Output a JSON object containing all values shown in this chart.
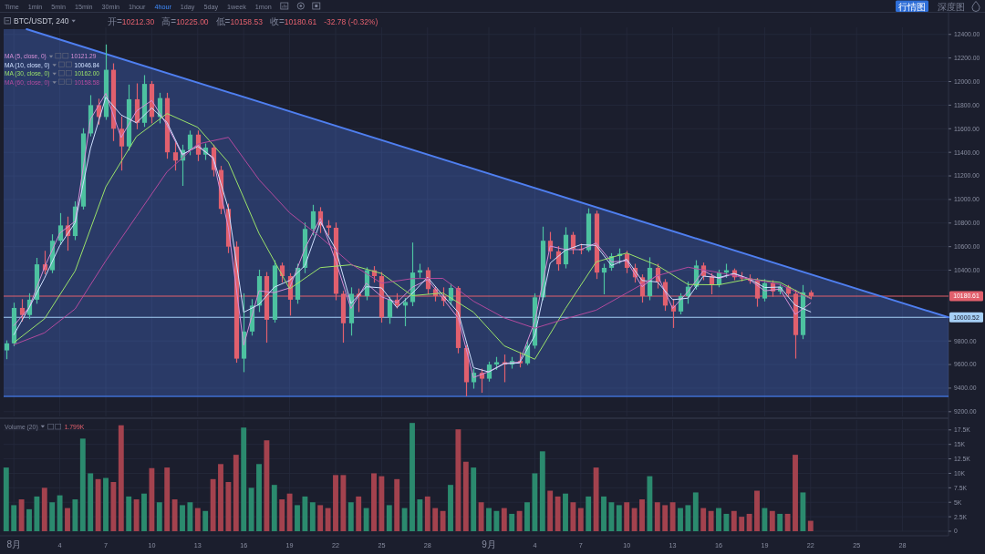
{
  "chart_data": [
    {
      "type": "candlestick",
      "title": "BTC/USDT, 240",
      "annotations": [
        "Time",
        "1min",
        "5min",
        "15min",
        "30min",
        "1hour",
        "4hour",
        "1day",
        "5day",
        "1week",
        "1mon",
        "行情图",
        "深度图",
        "开=10212.30",
        "高=10225.00",
        "低=10158.53",
        "收=10180.61",
        "-32.78 (-0.32%)",
        "10121.29",
        "10046.84",
        "10162.00",
        "10158.58"
      ],
      "x": [
        "--07-31T12:00",
        "--08-01T00:00",
        "--08-01T12:00",
        "--08-02T00:00",
        "--08-02T12:00",
        "--08-03T00:00",
        "--08-03T12:00",
        "--08-04T00:00",
        "--08-04T12:00",
        "--08-05T00:00",
        "--08-05T12:00",
        "--08-06T00:00",
        "--08-06T12:00",
        "--08-07T00:00",
        "--08-07T12:00",
        "--08-08T00:00",
        "--08-08T12:00",
        "--08-09T00:00",
        "--08-09T12:00",
        "--08-10T00:00",
        "--08-10T12:00",
        "--08-11T00:00",
        "--08-11T12:00",
        "--08-12T00:00",
        "--08-12T12:00",
        "--08-13T00:00",
        "--08-13T12:00",
        "--08-14T00:00",
        "--08-14T12:00",
        "--08-15T00:00",
        "--08-15T12:00",
        "--08-16T00:00",
        "--08-16T12:00",
        "--08-17T00:00",
        "--08-17T12:00",
        "--08-18T00:00",
        "--08-18T12:00",
        "--08-19T00:00",
        "--08-19T12:00",
        "--08-20T00:00",
        "--08-20T12:00",
        "--08-21T00:00",
        "--08-21T12:00",
        "--08-22T00:00",
        "--08-22T12:00",
        "--08-23T00:00",
        "--08-23T12:00",
        "--08-24T00:00",
        "--08-24T12:00",
        "--08-25T00:00",
        "--08-25T12:00",
        "--08-26T00:00",
        "--08-26T12:00",
        "--08-27T00:00",
        "--08-27T12:00",
        "--08-28T00:00",
        "--08-28T12:00",
        "--08-29T00:00",
        "--08-29T12:00",
        "--08-30T00:00",
        "--08-30T12:00",
        "--08-31T00:00",
        "--08-31T12:00",
        "--09-01T00:00",
        "--09-01T12:00",
        "--09-02T00:00",
        "--09-02T12:00",
        "--09-03T00:00",
        "--09-03T12:00",
        "--09-04T00:00",
        "--09-04T12:00",
        "--09-05T00:00",
        "--09-05T12:00",
        "--09-06T00:00",
        "--09-06T12:00",
        "--09-07T00:00",
        "--09-07T12:00",
        "--09-08T00:00",
        "--09-08T12:00",
        "--09-09T00:00",
        "--09-09T12:00",
        "--09-10T00:00",
        "--09-10T12:00",
        "--09-11T00:00",
        "--09-11T12:00",
        "--09-12T00:00",
        "--09-12T12:00",
        "--09-13T00:00",
        "--09-13T12:00",
        "--09-14T00:00",
        "--09-14T12:00",
        "--09-15T00:00",
        "--09-15T12:00",
        "--09-16T00:00",
        "--09-16T12:00",
        "--09-17T00:00",
        "--09-17T12:00",
        "--09-18T00:00",
        "--09-18T12:00",
        "--09-19T00:00",
        "--09-19T12:00",
        "--09-20T00:00",
        "--09-20T12:00",
        "--09-21T00:00",
        "--09-21T12:00",
        "--09-22T00:00"
      ],
      "ohlc": [
        [
          9720,
          9800,
          9650,
          9780
        ],
        [
          9780,
          10120,
          9760,
          10080
        ],
        [
          10080,
          10150,
          9970,
          10020
        ],
        [
          10020,
          10200,
          9990,
          10150
        ],
        [
          10150,
          10500,
          10120,
          10450
        ],
        [
          10450,
          10560,
          10370,
          10400
        ],
        [
          10400,
          10700,
          10380,
          10650
        ],
        [
          10650,
          10880,
          10620,
          10780
        ],
        [
          10780,
          10850,
          10570,
          10690
        ],
        [
          10690,
          10980,
          10660,
          10940
        ],
        [
          10940,
          11600,
          10920,
          11560
        ],
        [
          11560,
          11880,
          11540,
          11800
        ],
        [
          11800,
          11850,
          11640,
          11700
        ],
        [
          11700,
          12310,
          11680,
          12100
        ],
        [
          12100,
          12150,
          11500,
          11600
        ],
        [
          11600,
          11700,
          11250,
          11450
        ],
        [
          11450,
          11970,
          11420,
          11850
        ],
        [
          11850,
          11980,
          11600,
          11650
        ],
        [
          11650,
          12050,
          11620,
          11980
        ],
        [
          11980,
          12000,
          11650,
          11700
        ],
        [
          11700,
          11900,
          11650,
          11860
        ],
        [
          11860,
          11900,
          11350,
          11400
        ],
        [
          11400,
          11480,
          11250,
          11330
        ],
        [
          11330,
          11460,
          11120,
          11420
        ],
        [
          11420,
          11580,
          11380,
          11550
        ],
        [
          11550,
          11580,
          11330,
          11380
        ],
        [
          11380,
          11470,
          11340,
          11440
        ],
        [
          11440,
          11460,
          11200,
          11250
        ],
        [
          11250,
          11280,
          10880,
          10920
        ],
        [
          10920,
          10960,
          10550,
          10600
        ],
        [
          10600,
          10640,
          9620,
          9650
        ],
        [
          9650,
          10200,
          9540,
          9880
        ],
        [
          9880,
          10150,
          9850,
          10100
        ],
        [
          10100,
          10400,
          10050,
          10350
        ],
        [
          10350,
          10380,
          9790,
          9980
        ],
        [
          9980,
          10480,
          9960,
          10440
        ],
        [
          10440,
          10460,
          10300,
          10350
        ],
        [
          10350,
          10370,
          10020,
          10150
        ],
        [
          10150,
          10450,
          10120,
          10420
        ],
        [
          10420,
          10800,
          10380,
          10750
        ],
        [
          10750,
          10950,
          10700,
          10900
        ],
        [
          10900,
          10930,
          10720,
          10780
        ],
        [
          10780,
          10820,
          10700,
          10760
        ],
        [
          10760,
          10800,
          10150,
          10200
        ],
        [
          10200,
          10220,
          9790,
          9950
        ],
        [
          9950,
          10250,
          9850,
          10200
        ],
        [
          10200,
          10240,
          10050,
          10180
        ],
        [
          10180,
          10420,
          10150,
          10400
        ],
        [
          10400,
          10430,
          10300,
          10350
        ],
        [
          10350,
          10380,
          9960,
          10000
        ],
        [
          10000,
          10170,
          9950,
          10150
        ],
        [
          10150,
          10200,
          10080,
          10100
        ],
        [
          10100,
          10160,
          9930,
          10130
        ],
        [
          10130,
          10630,
          10100,
          10380
        ],
        [
          10380,
          10450,
          10340,
          10400
        ],
        [
          10400,
          10420,
          10200,
          10240
        ],
        [
          10240,
          10260,
          10140,
          10180
        ],
        [
          10180,
          10250,
          10100,
          10140
        ],
        [
          10140,
          10280,
          10110,
          10250
        ],
        [
          10250,
          10260,
          9700,
          9740
        ],
        [
          9740,
          9760,
          9335,
          9450
        ],
        [
          9450,
          9560,
          9400,
          9530
        ],
        [
          9530,
          9560,
          9365,
          9480
        ],
        [
          9480,
          9620,
          9460,
          9600
        ],
        [
          9600,
          9660,
          9560,
          9620
        ],
        [
          9620,
          9680,
          9455,
          9600
        ],
        [
          9600,
          9660,
          9570,
          9630
        ],
        [
          9630,
          9700,
          9580,
          9610
        ],
        [
          9610,
          9800,
          9600,
          9760
        ],
        [
          9760,
          10200,
          9740,
          10170
        ],
        [
          10170,
          10765,
          10150,
          10650
        ],
        [
          10650,
          10720,
          10500,
          10560
        ],
        [
          10560,
          10600,
          10400,
          10450
        ],
        [
          10450,
          10760,
          10420,
          10700
        ],
        [
          10700,
          10720,
          10540,
          10580
        ],
        [
          10580,
          10620,
          10540,
          10570
        ],
        [
          10570,
          10920,
          10560,
          10880
        ],
        [
          10880,
          10900,
          10330,
          10380
        ],
        [
          10380,
          10450,
          10200,
          10420
        ],
        [
          10420,
          10540,
          10400,
          10520
        ],
        [
          10520,
          10580,
          10460,
          10540
        ],
        [
          10540,
          10560,
          10380,
          10420
        ],
        [
          10420,
          10450,
          10300,
          10340
        ],
        [
          10340,
          10360,
          10130,
          10180
        ],
        [
          10180,
          10505,
          10150,
          10420
        ],
        [
          10420,
          10450,
          10250,
          10300
        ],
        [
          10300,
          10320,
          10060,
          10100
        ],
        [
          10100,
          10150,
          9915,
          10050
        ],
        [
          10050,
          10200,
          10030,
          10180
        ],
        [
          10180,
          10300,
          10120,
          10260
        ],
        [
          10260,
          10480,
          10240,
          10440
        ],
        [
          10440,
          10460,
          10320,
          10350
        ],
        [
          10350,
          10370,
          10200,
          10280
        ],
        [
          10280,
          10400,
          10260,
          10380
        ],
        [
          10380,
          10450,
          10340,
          10400
        ],
        [
          10400,
          10410,
          10320,
          10340
        ],
        [
          10340,
          10380,
          10310,
          10330
        ],
        [
          10330,
          10360,
          10290,
          10310
        ],
        [
          10310,
          10330,
          10095,
          10160
        ],
        [
          10160,
          10320,
          10140,
          10290
        ],
        [
          10290,
          10310,
          10180,
          10220
        ],
        [
          10220,
          10280,
          10200,
          10260
        ],
        [
          10260,
          10270,
          10180,
          10200
        ],
        [
          10200,
          10230,
          9655,
          9850
        ],
        [
          9850,
          10270,
          9820,
          10212.3
        ],
        [
          10212.3,
          10225.0,
          10158.53,
          10180.61
        ]
      ],
      "colors": [
        "#4dc2a0",
        "#4dc2a0",
        "#e1606e",
        "#4dc2a0",
        "#4dc2a0",
        "#e1606e",
        "#4dc2a0",
        "#4dc2a0",
        "#e1606e",
        "#4dc2a0",
        "#4dc2a0",
        "#4dc2a0",
        "#e1606e",
        "#4dc2a0",
        "#e1606e",
        "#e1606e",
        "#4dc2a0",
        "#e1606e",
        "#4dc2a0",
        "#e1606e",
        "#4dc2a0",
        "#e1606e",
        "#e1606e",
        "#4dc2a0",
        "#4dc2a0",
        "#e1606e",
        "#4dc2a0",
        "#e1606e",
        "#e1606e",
        "#e1606e",
        "#e1606e",
        "#4dc2a0",
        "#4dc2a0",
        "#4dc2a0",
        "#e1606e",
        "#4dc2a0",
        "#e1606e",
        "#e1606e",
        "#4dc2a0",
        "#4dc2a0",
        "#4dc2a0",
        "#e1606e",
        "#e1606e",
        "#e1606e",
        "#e1606e",
        "#4dc2a0",
        "#e1606e",
        "#4dc2a0",
        "#e1606e",
        "#e1606e",
        "#4dc2a0",
        "#e1606e",
        "#4dc2a0",
        "#4dc2a0",
        "#4dc2a0",
        "#e1606e",
        "#e1606e",
        "#e1606e",
        "#4dc2a0",
        "#e1606e",
        "#e1606e",
        "#4dc2a0",
        "#e1606e",
        "#4dc2a0",
        "#4dc2a0",
        "#e1606e",
        "#4dc2a0",
        "#e1606e",
        "#4dc2a0",
        "#4dc2a0",
        "#4dc2a0",
        "#e1606e",
        "#e1606e",
        "#4dc2a0",
        "#e1606e",
        "#e1606e",
        "#4dc2a0",
        "#e1606e",
        "#4dc2a0",
        "#4dc2a0",
        "#4dc2a0",
        "#e1606e",
        "#e1606e",
        "#e1606e",
        "#4dc2a0",
        "#e1606e",
        "#e1606e",
        "#e1606e",
        "#4dc2a0",
        "#4dc2a0",
        "#4dc2a0",
        "#e1606e",
        "#e1606e",
        "#4dc2a0",
        "#4dc2a0",
        "#e1606e",
        "#e1606e",
        "#e1606e",
        "#e1606e",
        "#4dc2a0",
        "#e1606e",
        "#4dc2a0",
        "#e1606e",
        "#e1606e",
        "#4dc2a0",
        "#e1606e"
      ],
      "series": [
        {
          "type": "line",
          "color": "#4f7ff0",
          "x": [
            "--07-31T08:00",
            "--08-01T20:00",
            "--10-01T00:00"
          ],
          "values": [
            null,
            12445,
            10000
          ],
          "lower": [
            9330,
            9330,
            9330
          ],
          "upper": [
            12445,
            12445,
            10000
          ]
        },
        {
          "type": "line",
          "name": "MA (5, close, 0)",
          "color": "#d58fd6",
          "x": [
            "--08-01",
            "--08-02",
            "--08-03",
            "--08-04",
            "--08-05",
            "--08-06",
            "--08-07",
            "--08-08",
            "--08-09",
            "--08-10",
            "--08-11",
            "--08-12",
            "--08-13",
            "--08-14",
            "--08-15",
            "--08-16",
            "--08-17",
            "--08-18",
            "--08-19",
            "--08-20",
            "--08-21",
            "--08-22",
            "--08-23",
            "--08-24",
            "--08-25",
            "--08-26",
            "--08-27",
            "--08-28",
            "--08-29",
            "--08-30",
            "--08-31",
            "--09-01",
            "--09-02",
            "--09-03",
            "--09-04",
            "--09-05",
            "--09-06",
            "--09-07",
            "--09-08",
            "--09-09",
            "--09-10",
            "--09-11",
            "--09-12",
            "--09-13",
            "--09-14",
            "--09-15",
            "--09-16",
            "--09-17",
            "--09-18",
            "--09-19",
            "--09-20",
            "--09-21",
            "--09-22"
          ],
          "values": [
            9930,
            10085,
            10425,
            10715,
            10815,
            11680,
            11900,
            11525,
            11750,
            11840,
            11630,
            11375,
            11465,
            11345,
            10760,
            9765,
            10225,
            10210,
            10250,
            10585,
            10840,
            10480,
            10075,
            10290,
            10175,
            10125,
            10255,
            10320,
            10160,
            9995,
            9490,
            9540,
            9610,
            9620,
            9965,
            10605,
            10575,
            10575,
            10630,
            10470,
            10480,
            10260,
            10360,
            10075,
            10220,
            10395,
            10330,
            10370,
            10320,
            10225,
            10240,
            10025,
            10121.29
          ]
        },
        {
          "type": "line",
          "name": "MA (10, close, 0)",
          "color": "#cfe0ff",
          "x": [
            "--08-01",
            "--08-02",
            "--08-03",
            "--08-04",
            "--08-05",
            "--08-06",
            "--08-07",
            "--08-08",
            "--08-09",
            "--08-10",
            "--08-11",
            "--08-12",
            "--08-13",
            "--08-14",
            "--08-15",
            "--08-16",
            "--08-17",
            "--08-18",
            "--08-19",
            "--08-20",
            "--08-21",
            "--08-22",
            "--08-23",
            "--08-24",
            "--08-25",
            "--08-26",
            "--08-27",
            "--08-28",
            "--08-29",
            "--08-30",
            "--08-31",
            "--09-01",
            "--09-02",
            "--09-03",
            "--09-04",
            "--09-05",
            "--09-06",
            "--09-07",
            "--09-08",
            "--09-09",
            "--09-10",
            "--09-11",
            "--09-12",
            "--09-13",
            "--09-14",
            "--09-15",
            "--09-16",
            "--09-17",
            "--09-18",
            "--09-19",
            "--09-20",
            "--09-21",
            "--09-22"
          ],
          "values": [
            9853,
            10083,
            10333,
            10610,
            10803,
            11433,
            11867,
            11717,
            11650,
            11777,
            11653,
            11383,
            11450,
            11357,
            10923,
            10043,
            10110,
            10257,
            10313,
            10440,
            10810,
            10580,
            10117,
            10260,
            10250,
            10083,
            10203,
            10340,
            10187,
            10043,
            9573,
            9537,
            9607,
            9613,
            9847,
            10460,
            10570,
            10617,
            10610,
            10440,
            10493,
            10313,
            10300,
            10150,
            10163,
            10350,
            10337,
            10373,
            10327,
            10253,
            10257,
            10103,
            10046.84
          ]
        },
        {
          "type": "line",
          "name": "MA (30, close, 0)",
          "color": "#9be36a",
          "x": [
            "--08-01",
            "--08-03",
            "--08-05",
            "--08-07",
            "--08-09",
            "--08-11",
            "--08-13",
            "--08-15",
            "--08-17",
            "--08-19",
            "--08-21",
            "--08-23",
            "--08-25",
            "--08-27",
            "--08-29",
            "--08-31",
            "--09-02",
            "--09-04",
            "--09-06",
            "--09-08",
            "--09-10",
            "--09-12",
            "--09-14",
            "--09-16",
            "--09-18",
            "--09-20",
            "--09-22"
          ],
          "values": [
            9786,
            9988,
            10394,
            11107,
            11534,
            11729,
            11612,
            11315,
            10712,
            10242,
            10422,
            10446,
            10372,
            10184,
            10207,
            10044,
            9759,
            9645,
            10075,
            10470,
            10546,
            10440,
            10279,
            10276,
            10327,
            10297,
            10162.0
          ]
        },
        {
          "type": "line",
          "name": "MA (60, close, 0)",
          "color": "#b34a9e",
          "x": [
            "--08-01",
            "--08-03",
            "--08-05",
            "--08-07",
            "--08-09",
            "--08-11",
            "--08-13",
            "--08-15",
            "--08-17",
            "--08-19",
            "--08-21",
            "--08-23",
            "--08-25",
            "--08-27",
            "--08-29",
            "--08-31",
            "--09-02",
            "--09-04",
            "--09-06",
            "--09-08",
            "--09-10",
            "--09-12",
            "--09-14",
            "--09-16",
            "--09-18",
            "--09-20",
            "--09-22"
          ],
          "values": [
            9768,
            9869,
            10072,
            10480,
            10858,
            11236,
            11470,
            11527,
            11168,
            10887,
            10682,
            10453,
            10290,
            10329,
            10331,
            10137,
            9996,
            9908,
            9988,
            10061,
            10207,
            10354,
            10425,
            10380,
            10328,
            10280,
            10158.58
          ]
        }
      ],
      "xlim": [
        "--07-31T08:00",
        "--10-01T00:00"
      ],
      "xticks": [
        {
          "value": "--08-01",
          "label": null
        },
        {
          "value": "--08-04",
          "label": null
        },
        {
          "value": "--08-07",
          "label": null
        },
        {
          "value": "--08-10",
          "label": null
        },
        {
          "value": "--08-13",
          "label": null
        },
        {
          "value": "--08-16",
          "label": null
        },
        {
          "value": "--08-19",
          "label": null
        },
        {
          "value": "--08-22",
          "label": null
        },
        {
          "value": "--08-25",
          "label": null
        },
        {
          "value": "--08-28",
          "label": null
        },
        {
          "value": "--09-01",
          "label": null
        },
        {
          "value": "--09-04",
          "label": null
        },
        {
          "value": "--09-07",
          "label": null
        },
        {
          "value": "--09-10",
          "label": null
        },
        {
          "value": "--09-13",
          "label": null
        },
        {
          "value": "--09-16",
          "label": null
        },
        {
          "value": "--09-19",
          "label": null
        },
        {
          "value": "--09-22",
          "label": null
        },
        {
          "value": "--09-25",
          "label": null
        },
        {
          "value": "--09-28",
          "label": null
        }
      ],
      "ylim": [
        9160,
        12460
      ],
      "yticks": [
        {
          "value": 9200,
          "label": "9200.00"
        },
        {
          "value": 9400,
          "label": "9400.00"
        },
        {
          "value": 9600,
          "label": "9600.00"
        },
        {
          "value": 9800,
          "label": "9800.00"
        },
        {
          "value": 10400,
          "label": "10400.00"
        },
        {
          "value": 10600,
          "label": "10600.00"
        },
        {
          "value": 10800,
          "label": "10800.00"
        },
        {
          "value": 11000,
          "label": "11000.00"
        },
        {
          "value": 11200,
          "label": "11200.00"
        },
        {
          "value": 11400,
          "label": "11400.00"
        },
        {
          "value": 11600,
          "label": "11600.00"
        },
        {
          "value": 11800,
          "label": "11800.00"
        },
        {
          "value": 12000,
          "label": "12000.00"
        },
        {
          "value": 12200,
          "label": "12200.00"
        },
        {
          "value": 12400,
          "label": "12400.00"
        }
      ],
      "tick_labels": "y",
      "ref_lines": [
        {
          "axis": "y",
          "value": 10180.61,
          "label": "10180.61",
          "color": "#e2606d"
        },
        {
          "axis": "y",
          "value": 10000.52,
          "label": "10000.52",
          "color": "#a6d0f6"
        },
        {
          "axis": "y",
          "value": 9330,
          "color": "#3f6fd0"
        }
      ],
      "grid": true,
      "legend": "top left"
    },
    {
      "type": "bar",
      "title": "Volume (20)",
      "annotations": [
        "1.799K"
      ],
      "x": [
        "--07-31T12:00",
        "--08-01T00:00",
        "--08-01T12:00",
        "--08-02T00:00",
        "--08-02T12:00",
        "--08-03T00:00",
        "--08-03T12:00",
        "--08-04T00:00",
        "--08-04T12:00",
        "--08-05T00:00",
        "--08-05T12:00",
        "--08-06T00:00",
        "--08-06T12:00",
        "--08-07T00:00",
        "--08-07T12:00",
        "--08-08T00:00",
        "--08-08T12:00",
        "--08-09T00:00",
        "--08-09T12:00",
        "--08-10T00:00",
        "--08-10T12:00",
        "--08-11T00:00",
        "--08-11T12:00",
        "--08-12T00:00",
        "--08-12T12:00",
        "--08-13T00:00",
        "--08-13T12:00",
        "--08-14T00:00",
        "--08-14T12:00",
        "--08-15T00:00",
        "--08-15T12:00",
        "--08-16T00:00",
        "--08-16T12:00",
        "--08-17T00:00",
        "--08-17T12:00",
        "--08-18T00:00",
        "--08-18T12:00",
        "--08-19T00:00",
        "--08-19T12:00",
        "--08-20T00:00",
        "--08-20T12:00",
        "--08-21T00:00",
        "--08-21T12:00",
        "--08-22T00:00",
        "--08-22T12:00",
        "--08-23T00:00",
        "--08-23T12:00",
        "--08-24T00:00",
        "--08-24T12:00",
        "--08-25T00:00",
        "--08-25T12:00",
        "--08-26T00:00",
        "--08-26T12:00",
        "--08-27T00:00",
        "--08-27T12:00",
        "--08-28T00:00",
        "--08-28T12:00",
        "--08-29T00:00",
        "--08-29T12:00",
        "--08-30T00:00",
        "--08-30T12:00",
        "--08-31T00:00",
        "--08-31T12:00",
        "--09-01T00:00",
        "--09-01T12:00",
        "--09-02T00:00",
        "--09-02T12:00",
        "--09-03T00:00",
        "--09-03T12:00",
        "--09-04T00:00",
        "--09-04T12:00",
        "--09-05T00:00",
        "--09-05T12:00",
        "--09-06T00:00",
        "--09-06T12:00",
        "--09-07T00:00",
        "--09-07T12:00",
        "--09-08T00:00",
        "--09-08T12:00",
        "--09-09T00:00",
        "--09-09T12:00",
        "--09-10T00:00",
        "--09-10T12:00",
        "--09-11T00:00",
        "--09-11T12:00",
        "--09-12T00:00",
        "--09-12T12:00",
        "--09-13T00:00",
        "--09-13T12:00",
        "--09-14T00:00",
        "--09-14T12:00",
        "--09-15T00:00",
        "--09-15T12:00",
        "--09-16T00:00",
        "--09-16T12:00",
        "--09-17T00:00",
        "--09-17T12:00",
        "--09-18T00:00",
        "--09-18T12:00",
        "--09-19T00:00",
        "--09-19T12:00",
        "--09-20T00:00",
        "--09-20T12:00",
        "--09-21T00:00",
        "--09-21T12:00",
        "--09-22T00:00"
      ],
      "values": [
        11.0,
        4.5,
        5.5,
        3.8,
        6.0,
        7.5,
        5.0,
        6.2,
        4.0,
        5.5,
        16.0,
        10.0,
        9.0,
        9.2,
        8.5,
        18.3,
        6.0,
        5.5,
        6.5,
        10.9,
        5.0,
        11.0,
        5.5,
        4.5,
        5.0,
        4.0,
        3.5,
        9.0,
        11.6,
        8.5,
        13.2,
        17.9,
        7.5,
        11.6,
        15.7,
        8.0,
        5.5,
        6.5,
        4.5,
        6.0,
        5.0,
        4.5,
        4.0,
        9.7,
        9.7,
        5.0,
        6.0,
        4.0,
        10.0,
        9.5,
        4.5,
        9.0,
        4.0,
        18.7,
        5.5,
        6.0,
        4.0,
        3.5,
        8.0,
        17.6,
        12.0,
        11.0,
        5.0,
        4.0,
        3.5,
        4.0,
        3.0,
        3.5,
        5.0,
        10.0,
        13.8,
        7.0,
        6.0,
        6.5,
        5.0,
        4.0,
        6.0,
        11.0,
        6.0,
        5.0,
        4.5,
        5.0,
        4.0,
        5.5,
        9.5,
        5.0,
        4.5,
        5.0,
        4.0,
        4.5,
        6.7,
        4.0,
        3.5,
        4.0,
        3.0,
        3.5,
        2.5,
        3.0,
        7.0,
        4.0,
        3.5,
        3.0,
        3.0,
        13.2,
        6.7,
        1.799
      ],
      "colors": [
        "#2b8a6e",
        "#2b8a6e",
        "#a3424e",
        "#2b8a6e",
        "#2b8a6e",
        "#a3424e",
        "#2b8a6e",
        "#2b8a6e",
        "#a3424e",
        "#2b8a6e",
        "#2b8a6e",
        "#2b8a6e",
        "#a3424e",
        "#2b8a6e",
        "#a3424e",
        "#a3424e",
        "#2b8a6e",
        "#a3424e",
        "#2b8a6e",
        "#a3424e",
        "#2b8a6e",
        "#a3424e",
        "#a3424e",
        "#2b8a6e",
        "#2b8a6e",
        "#a3424e",
        "#2b8a6e",
        "#a3424e",
        "#a3424e",
        "#a3424e",
        "#a3424e",
        "#2b8a6e",
        "#2b8a6e",
        "#2b8a6e",
        "#a3424e",
        "#2b8a6e",
        "#a3424e",
        "#a3424e",
        "#2b8a6e",
        "#2b8a6e",
        "#2b8a6e",
        "#a3424e",
        "#a3424e",
        "#a3424e",
        "#a3424e",
        "#2b8a6e",
        "#a3424e",
        "#2b8a6e",
        "#a3424e",
        "#a3424e",
        "#2b8a6e",
        "#a3424e",
        "#2b8a6e",
        "#2b8a6e",
        "#2b8a6e",
        "#a3424e",
        "#a3424e",
        "#a3424e",
        "#2b8a6e",
        "#a3424e",
        "#a3424e",
        "#2b8a6e",
        "#a3424e",
        "#2b8a6e",
        "#2b8a6e",
        "#a3424e",
        "#2b8a6e",
        "#a3424e",
        "#2b8a6e",
        "#2b8a6e",
        "#2b8a6e",
        "#a3424e",
        "#a3424e",
        "#2b8a6e",
        "#a3424e",
        "#a3424e",
        "#2b8a6e",
        "#a3424e",
        "#2b8a6e",
        "#2b8a6e",
        "#2b8a6e",
        "#a3424e",
        "#a3424e",
        "#a3424e",
        "#2b8a6e",
        "#a3424e",
        "#a3424e",
        "#a3424e",
        "#2b8a6e",
        "#2b8a6e",
        "#2b8a6e",
        "#a3424e",
        "#a3424e",
        "#2b8a6e",
        "#2b8a6e",
        "#a3424e",
        "#a3424e",
        "#a3424e",
        "#a3424e",
        "#2b8a6e",
        "#a3424e",
        "#2b8a6e",
        "#a3424e",
        "#a3424e",
        "#2b8a6e",
        "#a3424e"
      ],
      "xlim": [
        "--07-31T08:00",
        "--10-01T00:00"
      ],
      "xticks": [
        {
          "value": "--08-01",
          "label": "8月"
        },
        {
          "value": "--08-04",
          "label": "4"
        },
        {
          "value": "--08-07",
          "label": "7"
        },
        {
          "value": "--08-10",
          "label": "10"
        },
        {
          "value": "--08-13",
          "label": "13"
        },
        {
          "value": "--08-16",
          "label": "16"
        },
        {
          "value": "--08-19",
          "label": "19"
        },
        {
          "value": "--08-22",
          "label": "22"
        },
        {
          "value": "--08-25",
          "label": "25"
        },
        {
          "value": "--08-28",
          "label": "28"
        },
        {
          "value": "--09-01",
          "label": "9月"
        },
        {
          "value": "--09-04",
          "label": "4"
        },
        {
          "value": "--09-07",
          "label": "7"
        },
        {
          "value": "--09-10",
          "label": "10"
        },
        {
          "value": "--09-13",
          "label": "13"
        },
        {
          "value": "--09-16",
          "label": "16"
        },
        {
          "value": "--09-19",
          "label": "19"
        },
        {
          "value": "--09-22",
          "label": "22"
        },
        {
          "value": "--09-25",
          "label": "25"
        },
        {
          "value": "--09-28",
          "label": "28"
        }
      ],
      "ylim": [
        0,
        19.2
      ],
      "yticks": [
        0,
        {
          "value": 2.5,
          "label": "2.5K"
        },
        {
          "value": 5,
          "label": "5K"
        },
        {
          "value": 7.5,
          "label": "7.5K"
        },
        {
          "value": 10,
          "label": "10K"
        },
        {
          "value": 12.5,
          "label": "12.5K"
        },
        {
          "value": 15,
          "label": "15K"
        },
        {
          "value": 17.5,
          "label": "17.5K"
        }
      ],
      "grid": true
    }
  ]
}
